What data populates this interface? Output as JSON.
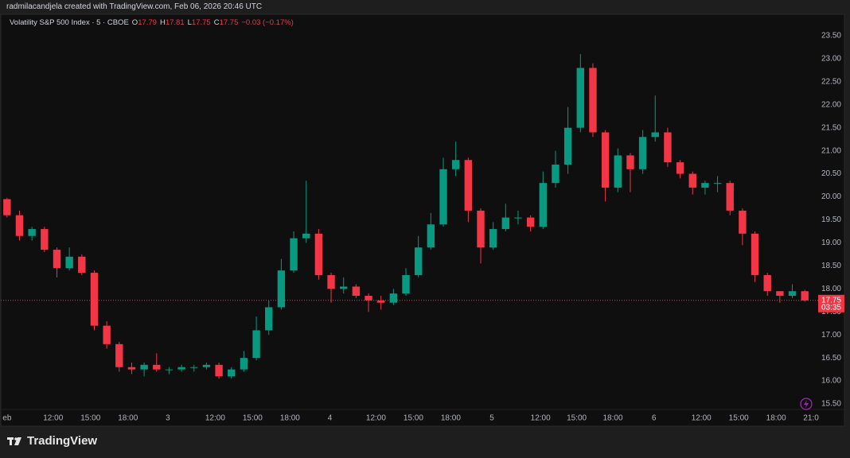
{
  "header": {
    "caption": "radmilacandjela created with TradingView.com, Feb 06, 2026 20:46 UTC"
  },
  "chart_data": {
    "type": "candlestick",
    "symbol": "Volatility S&P 500 Index · 5 · CBOE",
    "legend": [
      {
        "label": "O",
        "value": 17.79
      },
      {
        "label": "H",
        "value": 17.81
      },
      {
        "label": "L",
        "value": 17.75
      },
      {
        "label": "C",
        "value": 17.75
      }
    ],
    "change": "−0.03 (−0.17%)",
    "up_color": "#089981",
    "down_color": "#f23645",
    "grid": false,
    "open": [
      19.95,
      19.6,
      19.15,
      19.3,
      18.85,
      18.45,
      18.7,
      18.35,
      17.2,
      16.8,
      16.3,
      16.25,
      16.35,
      16.25,
      16.25,
      16.3,
      16.3,
      16.35,
      16.1,
      16.25,
      16.5,
      17.1,
      17.6,
      18.4,
      19.1,
      19.2,
      18.3,
      18.0,
      18.05,
      17.85,
      17.75,
      17.7,
      17.9,
      18.3,
      18.9,
      19.4,
      20.6,
      20.8,
      19.7,
      18.9,
      19.3,
      19.55,
      19.55,
      19.35,
      20.3,
      20.7,
      21.5,
      22.8,
      21.4,
      20.2,
      20.9,
      20.6,
      21.3,
      21.4,
      20.75,
      20.5,
      20.2,
      20.3,
      20.3,
      19.7,
      19.2,
      18.3,
      17.95,
      17.85,
      17.95
    ],
    "high": [
      19.98,
      19.7,
      19.35,
      19.35,
      18.9,
      18.9,
      18.75,
      18.4,
      17.3,
      16.85,
      16.4,
      16.4,
      16.6,
      16.3,
      16.35,
      16.35,
      16.4,
      16.4,
      16.3,
      16.65,
      17.4,
      17.75,
      18.65,
      19.25,
      20.35,
      19.3,
      18.35,
      18.25,
      18.1,
      17.9,
      17.85,
      18.0,
      18.45,
      19.15,
      19.65,
      20.85,
      21.2,
      20.85,
      19.75,
      19.45,
      19.85,
      19.7,
      19.6,
      20.55,
      21.0,
      21.95,
      23.1,
      22.9,
      21.45,
      21.05,
      20.95,
      21.45,
      22.2,
      21.5,
      20.8,
      20.55,
      20.35,
      20.45,
      20.35,
      19.75,
      19.25,
      18.35,
      17.95,
      18.1,
      17.98
    ],
    "low": [
      19.55,
      19.05,
      19.05,
      18.8,
      18.25,
      18.4,
      18.3,
      17.1,
      16.7,
      16.2,
      16.15,
      16.1,
      16.2,
      16.15,
      16.2,
      16.2,
      16.25,
      16.05,
      16.05,
      16.2,
      16.45,
      17.0,
      17.55,
      18.35,
      19.0,
      18.2,
      17.7,
      17.9,
      17.8,
      17.5,
      17.55,
      17.65,
      17.85,
      18.25,
      18.85,
      19.35,
      20.45,
      19.45,
      18.55,
      18.85,
      19.25,
      19.4,
      19.25,
      19.3,
      20.2,
      20.5,
      21.4,
      21.3,
      19.9,
      20.1,
      20.1,
      20.5,
      21.2,
      20.65,
      20.4,
      20.05,
      20.05,
      20.1,
      19.6,
      18.95,
      18.15,
      17.85,
      17.7,
      17.8,
      17.72
    ],
    "close": [
      19.6,
      19.15,
      19.3,
      18.85,
      18.45,
      18.7,
      18.35,
      17.2,
      16.8,
      16.3,
      16.25,
      16.35,
      16.25,
      16.25,
      16.3,
      16.3,
      16.35,
      16.1,
      16.25,
      16.5,
      17.1,
      17.6,
      18.4,
      19.1,
      19.2,
      18.3,
      18.0,
      18.05,
      17.85,
      17.75,
      17.7,
      17.9,
      18.3,
      18.9,
      19.4,
      20.6,
      20.8,
      19.7,
      18.9,
      19.3,
      19.55,
      19.55,
      19.35,
      20.3,
      20.7,
      21.5,
      22.8,
      21.4,
      20.2,
      20.9,
      20.6,
      21.3,
      21.4,
      20.75,
      20.5,
      20.2,
      20.3,
      20.3,
      19.7,
      19.2,
      18.3,
      17.95,
      17.85,
      17.95,
      17.75
    ],
    "xlim": [
      0,
      65.7
    ],
    "xticks": [
      {
        "value": 0.5,
        "label": "eb"
      },
      {
        "value": 4.2,
        "label": "12:00"
      },
      {
        "value": 7.2,
        "label": "15:00"
      },
      {
        "value": 10.2,
        "label": "18:00"
      },
      {
        "value": 13.4,
        "label": "3"
      },
      {
        "value": 17.2,
        "label": "12:00"
      },
      {
        "value": 20.2,
        "label": "15:00"
      },
      {
        "value": 23.2,
        "label": "18:00"
      },
      {
        "value": 26.4,
        "label": "4"
      },
      {
        "value": 30.1,
        "label": "12:00"
      },
      {
        "value": 33.1,
        "label": "15:00"
      },
      {
        "value": 36.1,
        "label": "18:00"
      },
      {
        "value": 39.4,
        "label": "5"
      },
      {
        "value": 43.3,
        "label": "12:00"
      },
      {
        "value": 46.2,
        "label": "15:00"
      },
      {
        "value": 49.1,
        "label": "18:00"
      },
      {
        "value": 52.4,
        "label": "6"
      },
      {
        "value": 56.2,
        "label": "12:00"
      },
      {
        "value": 59.2,
        "label": "15:00"
      },
      {
        "value": 62.2,
        "label": "18:00"
      },
      {
        "value": 65.0,
        "label": "21:0"
      }
    ],
    "ylim": [
      15.38,
      23.93
    ],
    "yticks": [
      {
        "value": 15.5,
        "label": "15.50"
      },
      {
        "value": 16,
        "label": "16.00"
      },
      {
        "value": 16.5,
        "label": "16.50"
      },
      {
        "value": 17,
        "label": "17.00"
      },
      {
        "value": 17.5,
        "label": "17.50"
      },
      {
        "value": 18,
        "label": "18.00"
      },
      {
        "value": 18.5,
        "label": "18.50"
      },
      {
        "value": 19,
        "label": "19.00"
      },
      {
        "value": 19.5,
        "label": "19.50"
      },
      {
        "value": 20,
        "label": "20.00"
      },
      {
        "value": 20.5,
        "label": "20.50"
      },
      {
        "value": 21,
        "label": "21.00"
      },
      {
        "value": 21.5,
        "label": "21.50"
      },
      {
        "value": 22,
        "label": "22.00"
      },
      {
        "value": 22.5,
        "label": "22.50"
      },
      {
        "value": 23,
        "label": "23.00"
      },
      {
        "value": 23.5,
        "label": "23.50"
      }
    ],
    "last_price": {
      "value": 17.75,
      "countdown": "03:35"
    }
  },
  "footer": {
    "brand": "TradingView"
  }
}
